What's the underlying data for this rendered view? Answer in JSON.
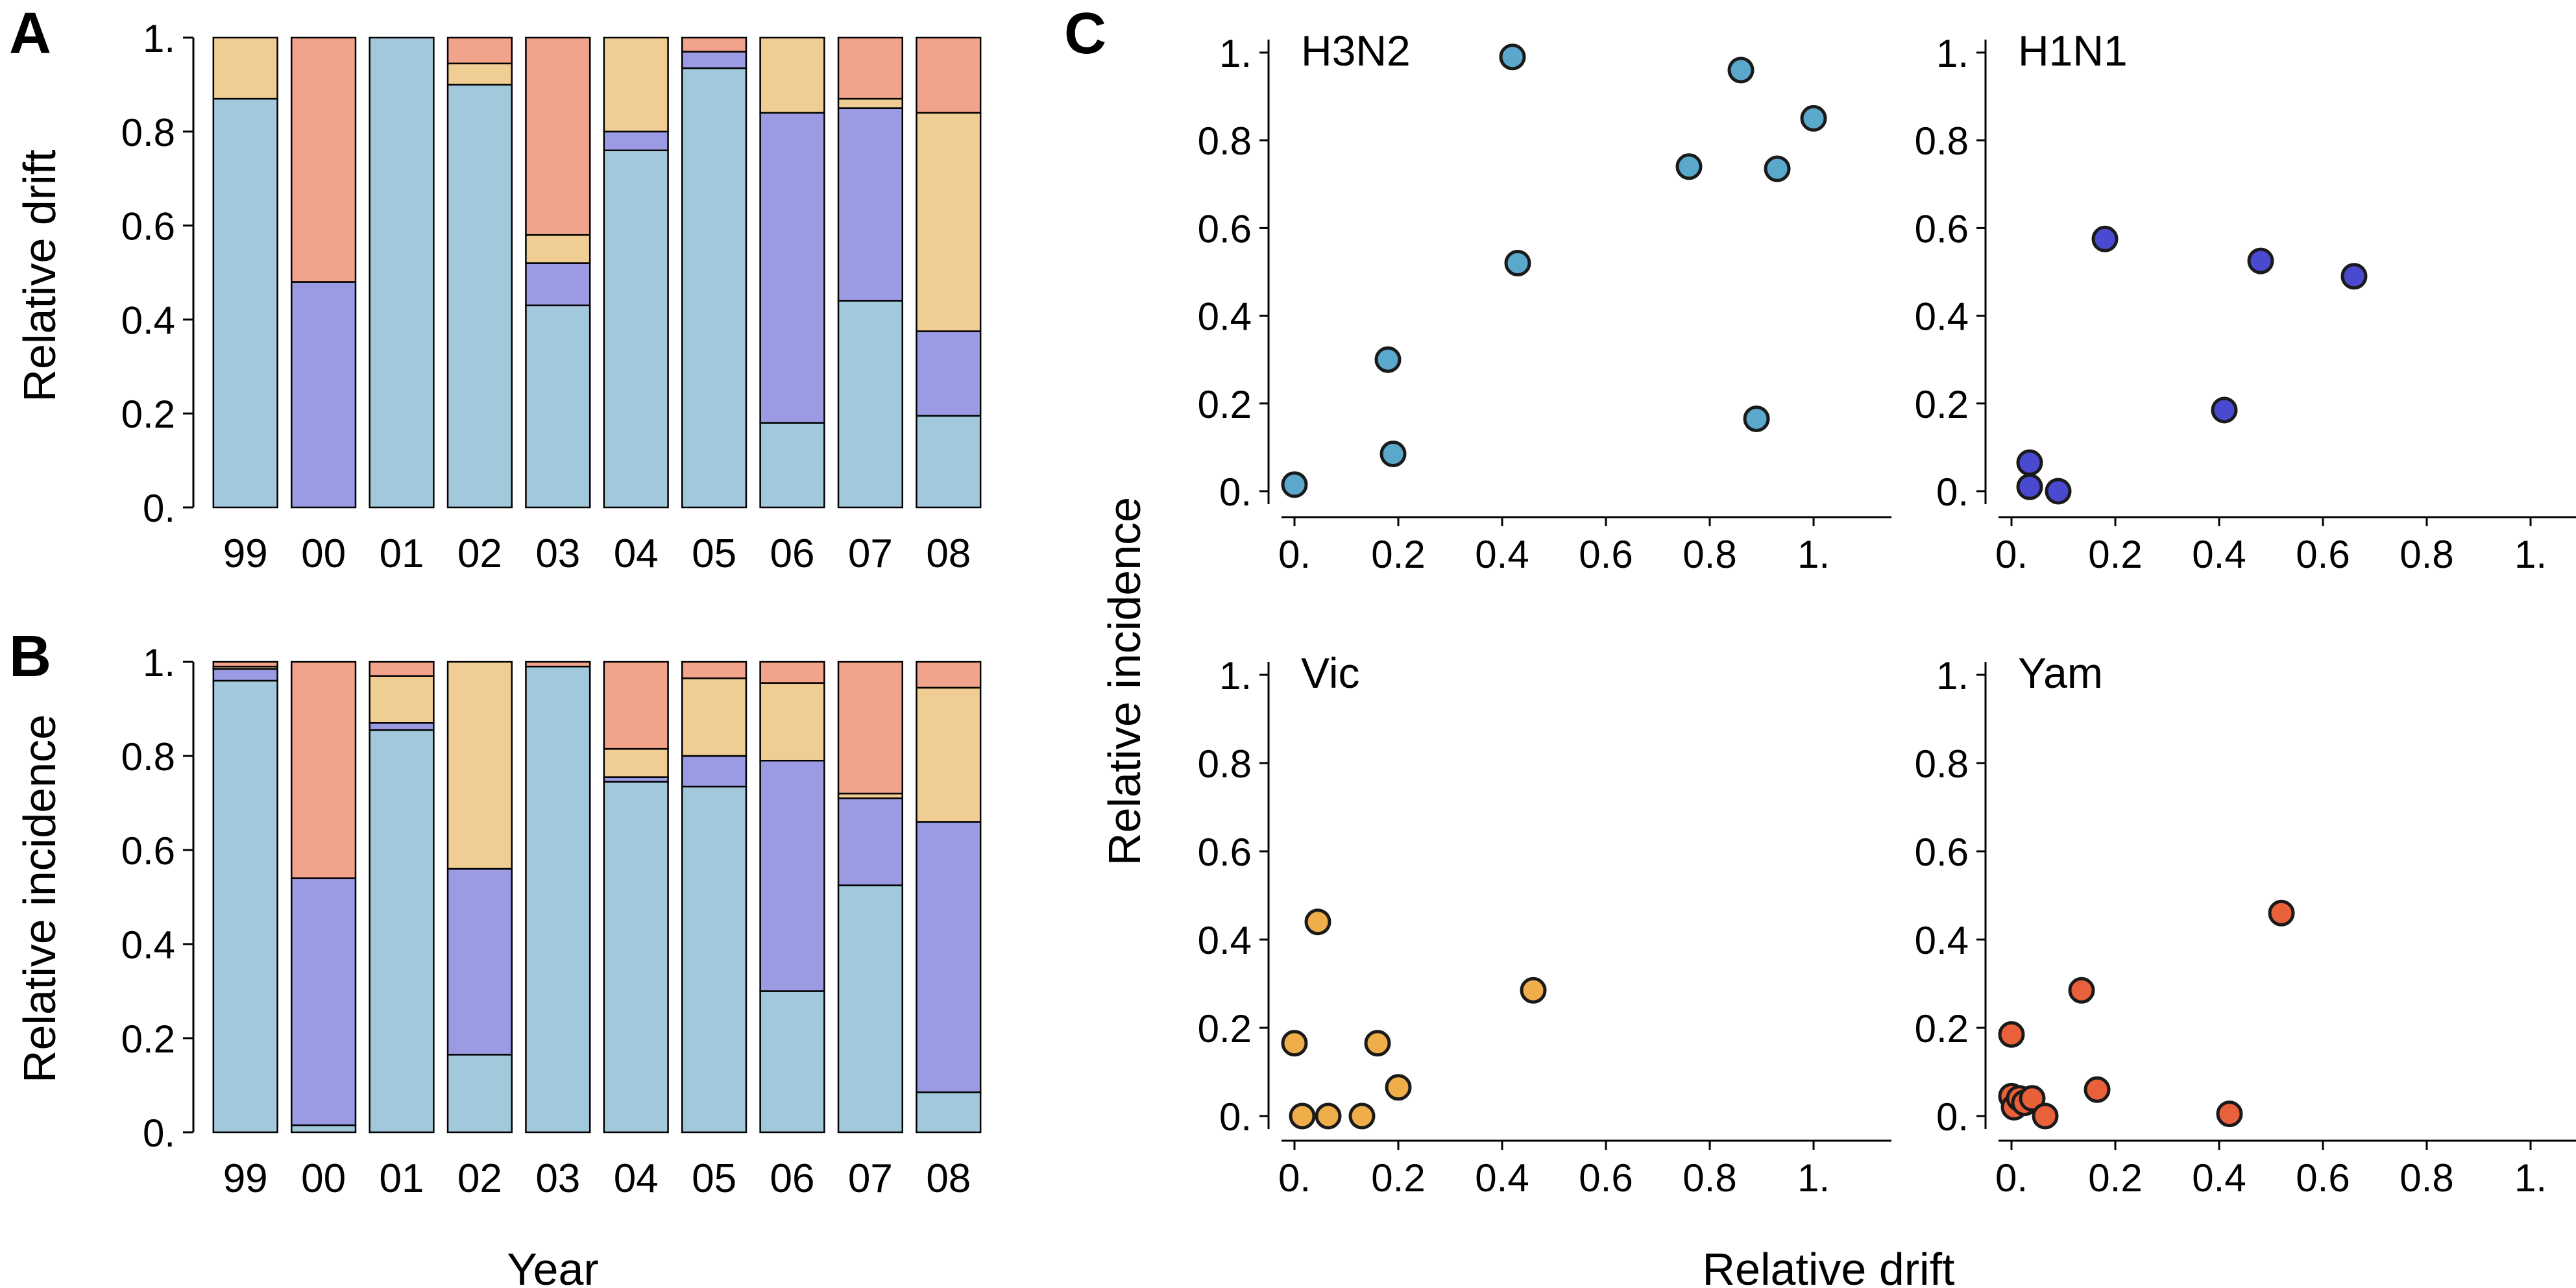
{
  "panels": {
    "A": {
      "letter": "A"
    },
    "B": {
      "letter": "B"
    },
    "C": {
      "letter": "C"
    }
  },
  "y_tick_labels": [
    "0.",
    "0.2",
    "0.4",
    "0.6",
    "0.8",
    "1."
  ],
  "scatter_tick_labels": [
    "0.",
    "0.2",
    "0.4",
    "0.6",
    "0.8",
    "1."
  ],
  "colors": {
    "H3N2": "#a2c8db",
    "H1N1": "#9b9be3",
    "Vic": "#f0cd92",
    "Yam": "#f1a38c",
    "scatter_H3N2": "#5aa8cc",
    "scatter_H1N1": "#4a4ad0",
    "scatter_Vic": "#f0ae4a",
    "scatter_Yam": "#e8613a"
  },
  "chart_data": [
    {
      "id": "A",
      "type": "bar",
      "stacked": true,
      "title": "",
      "xlabel": "",
      "ylabel": "Relative drift",
      "ylim": [
        0,
        1
      ],
      "categories": [
        "99",
        "00",
        "01",
        "02",
        "03",
        "04",
        "05",
        "06",
        "07",
        "08"
      ],
      "series": [
        {
          "key": "H3N2",
          "values": [
            0.87,
            0.0,
            1.0,
            0.9,
            0.43,
            0.76,
            0.935,
            0.18,
            0.44,
            0.195
          ]
        },
        {
          "key": "H1N1",
          "values": [
            0.0,
            0.48,
            0.0,
            0.0,
            0.09,
            0.04,
            0.035,
            0.66,
            0.41,
            0.18
          ]
        },
        {
          "key": "Vic",
          "values": [
            0.13,
            0.0,
            0.0,
            0.045,
            0.06,
            0.2,
            0.0,
            0.16,
            0.02,
            0.465
          ]
        },
        {
          "key": "Yam",
          "values": [
            0.0,
            0.52,
            0.0,
            0.055,
            0.42,
            0.0,
            0.03,
            0.0,
            0.13,
            0.16
          ]
        }
      ]
    },
    {
      "id": "B",
      "type": "bar",
      "stacked": true,
      "title": "",
      "xlabel": "Year",
      "ylabel": "Relative incidence",
      "ylim": [
        0,
        1
      ],
      "categories": [
        "99",
        "00",
        "01",
        "02",
        "03",
        "04",
        "05",
        "06",
        "07",
        "08"
      ],
      "series": [
        {
          "key": "H3N2",
          "values": [
            0.96,
            0.015,
            0.855,
            0.165,
            0.99,
            0.745,
            0.735,
            0.3,
            0.525,
            0.085
          ]
        },
        {
          "key": "H1N1",
          "values": [
            0.025,
            0.525,
            0.015,
            0.395,
            0.0,
            0.01,
            0.065,
            0.49,
            0.185,
            0.575
          ]
        },
        {
          "key": "Vic",
          "values": [
            0.005,
            0.0,
            0.1,
            0.44,
            0.0,
            0.06,
            0.165,
            0.165,
            0.01,
            0.285
          ]
        },
        {
          "key": "Yam",
          "values": [
            0.01,
            0.46,
            0.03,
            0.0,
            0.01,
            0.185,
            0.035,
            0.045,
            0.28,
            0.055
          ]
        }
      ]
    },
    {
      "id": "C",
      "type": "scatter",
      "title": "",
      "xlabel": "Relative drift",
      "ylabel": "Relative incidence",
      "xlim": [
        0,
        1
      ],
      "ylim": [
        0,
        1
      ],
      "grid": false,
      "subplots": [
        {
          "key": "H3N2",
          "label": "H3N2",
          "color_key": "scatter_H3N2",
          "points": [
            [
              0.0,
              0.015
            ],
            [
              0.18,
              0.3
            ],
            [
              0.19,
              0.085
            ],
            [
              0.42,
              0.99
            ],
            [
              0.43,
              0.52
            ],
            [
              0.76,
              0.74
            ],
            [
              0.86,
              0.96
            ],
            [
              0.89,
              0.165
            ],
            [
              0.93,
              0.735
            ],
            [
              1.0,
              0.85
            ]
          ]
        },
        {
          "key": "H1N1",
          "label": "H1N1",
          "color_key": "scatter_H1N1",
          "points": [
            [
              0.035,
              0.065
            ],
            [
              0.035,
              0.01
            ],
            [
              0.09,
              0.0
            ],
            [
              0.18,
              0.575
            ],
            [
              0.41,
              0.185
            ],
            [
              0.48,
              0.525
            ],
            [
              0.66,
              0.49
            ]
          ]
        },
        {
          "key": "Vic",
          "label": "Vic",
          "color_key": "scatter_Vic",
          "points": [
            [
              0.0,
              0.165
            ],
            [
              0.015,
              0.0
            ],
            [
              0.045,
              0.44
            ],
            [
              0.065,
              0.0
            ],
            [
              0.13,
              0.0
            ],
            [
              0.16,
              0.165
            ],
            [
              0.2,
              0.065
            ],
            [
              0.46,
              0.285
            ]
          ]
        },
        {
          "key": "Yam",
          "label": "Yam",
          "color_key": "scatter_Yam",
          "points": [
            [
              0.0,
              0.185
            ],
            [
              0.0,
              0.045
            ],
            [
              0.005,
              0.02
            ],
            [
              0.015,
              0.04
            ],
            [
              0.025,
              0.03
            ],
            [
              0.04,
              0.04
            ],
            [
              0.065,
              0.0
            ],
            [
              0.135,
              0.285
            ],
            [
              0.165,
              0.06
            ],
            [
              0.42,
              0.005
            ],
            [
              0.52,
              0.46
            ]
          ]
        }
      ]
    }
  ]
}
